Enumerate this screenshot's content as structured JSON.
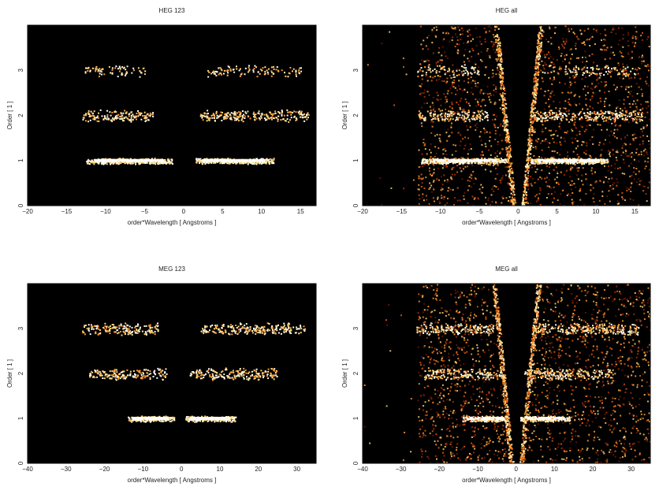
{
  "chart_data": [
    {
      "type": "heatmap",
      "title": "HEG 123",
      "xlabel": "order*Wavelength [ Angstroms ]",
      "ylabel": "Order [ 1 ]",
      "xlim": [
        -20,
        17
      ],
      "ylim": [
        0,
        4
      ],
      "xticks": [
        -20,
        -15,
        -10,
        -5,
        0,
        5,
        10,
        15
      ],
      "yticks": [
        0,
        1,
        2,
        3
      ],
      "background": "#000000",
      "bands": [
        {
          "order": 1,
          "x_ranges": [
            [
              -12.5,
              -1.5
            ],
            [
              1.5,
              11.5
            ]
          ],
          "intensity": "high"
        },
        {
          "order": 2,
          "x_ranges": [
            [
              -13,
              -4
            ],
            [
              2,
              16
            ]
          ],
          "intensity": "medium"
        },
        {
          "order": 3,
          "x_ranges": [
            [
              -13,
              -5
            ],
            [
              3,
              15
            ]
          ],
          "intensity": "low"
        }
      ]
    },
    {
      "type": "heatmap",
      "title": "HEG all",
      "xlabel": "order*Wavelength [ Angstroms ]",
      "ylabel": "Order [ 1 ]",
      "xlim": [
        -20,
        17
      ],
      "ylim": [
        0,
        4
      ],
      "xticks": [
        -20,
        -15,
        -10,
        -5,
        0,
        5,
        10,
        15
      ],
      "yticks": [
        0,
        1,
        2,
        3
      ],
      "background": "#000000",
      "bands": [
        {
          "order": 1,
          "x_ranges": [
            [
              -12.5,
              -1.5
            ],
            [
              1.5,
              11.5
            ]
          ],
          "intensity": "high"
        },
        {
          "order": 2,
          "x_ranges": [
            [
              -13,
              -4
            ],
            [
              2,
              16
            ]
          ],
          "intensity": "medium"
        },
        {
          "order": 3,
          "x_ranges": [
            [
              -13,
              -5
            ],
            [
              3,
              15
            ]
          ],
          "intensity": "low"
        }
      ]
    },
    {
      "type": "heatmap",
      "title": "MEG 123",
      "xlabel": "order*Wavelength [ Angstroms ]",
      "ylabel": "Order [ 1 ]",
      "xlim": [
        -40,
        35
      ],
      "ylim": [
        0,
        4
      ],
      "xticks": [
        -40,
        -30,
        -20,
        -10,
        0,
        10,
        20,
        30
      ],
      "yticks": [
        0,
        1,
        2,
        3
      ],
      "background": "#000000",
      "bands": [
        {
          "order": 1,
          "x_ranges": [
            [
              -14,
              -2
            ],
            [
              1,
              14
            ]
          ],
          "intensity": "high"
        },
        {
          "order": 2,
          "x_ranges": [
            [
              -24,
              -4
            ],
            [
              2,
              25
            ]
          ],
          "intensity": "medium"
        },
        {
          "order": 3,
          "x_ranges": [
            [
              -26,
              -6
            ],
            [
              5,
              32
            ]
          ],
          "intensity": "medium"
        }
      ]
    },
    {
      "type": "heatmap",
      "title": "MEG all",
      "xlabel": "order*Wavelength [ Angstroms ]",
      "ylabel": "Order [ 1 ]",
      "xlim": [
        -40,
        35
      ],
      "ylim": [
        0,
        4
      ],
      "xticks": [
        -40,
        -30,
        -20,
        -10,
        0,
        10,
        20,
        30
      ],
      "yticks": [
        0,
        1,
        2,
        3
      ],
      "background": "#000000",
      "bands": [
        {
          "order": 1,
          "x_ranges": [
            [
              -14,
              -2
            ],
            [
              1,
              14
            ]
          ],
          "intensity": "high"
        },
        {
          "order": 2,
          "x_ranges": [
            [
              -24,
              -4
            ],
            [
              2,
              25
            ]
          ],
          "intensity": "medium"
        },
        {
          "order": 3,
          "x_ranges": [
            [
              -26,
              -6
            ],
            [
              5,
              32
            ]
          ],
          "intensity": "medium"
        }
      ]
    }
  ]
}
